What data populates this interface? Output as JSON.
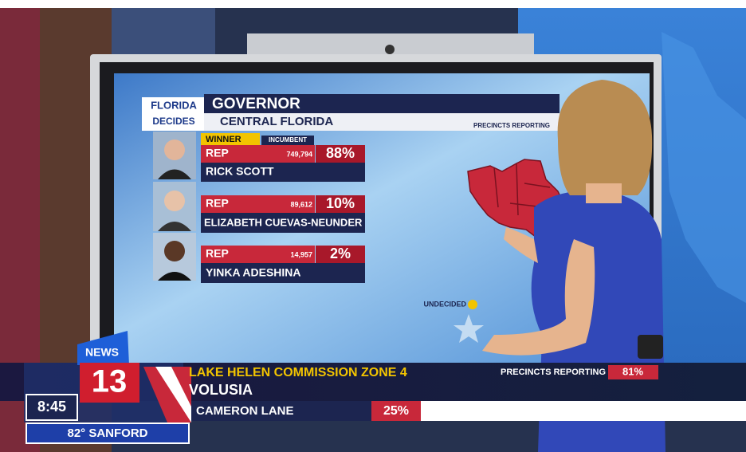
{
  "screen": {
    "logo": {
      "line1": "FLORIDA",
      "line2": "DECIDES"
    },
    "title": "GOVERNOR",
    "subtitle": "CENTRAL FLORIDA",
    "precincts_label": "PRECINCTS REPORTING",
    "candidates": [
      {
        "winner": "WINNER",
        "status": "INCUMBENT",
        "party": "REP",
        "votes": "749,794",
        "percent": "88%",
        "name": "RICK SCOTT"
      },
      {
        "party": "REP",
        "votes": "89,612",
        "percent": "10%",
        "name": "ELIZABETH CUEVAS-NEUNDER"
      },
      {
        "party": "REP",
        "votes": "14,957",
        "percent": "2%",
        "name": "YINKA ADESHINA"
      }
    ],
    "map_legend": "UNDECIDED"
  },
  "lower_third": {
    "station": {
      "line1": "NEWS",
      "line2": "13"
    },
    "race": "LAKE HELEN COMMISSION ZONE 4",
    "county": "VOLUSIA",
    "precincts_label": "PRECINCTS REPORTING",
    "precincts_percent": "81%",
    "candidate": "CAMERON LANE",
    "candidate_percent": "25%",
    "time": "8:45",
    "weather": "82° SANFORD"
  }
}
